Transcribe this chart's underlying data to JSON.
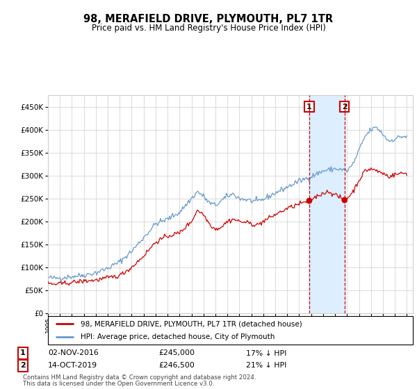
{
  "title": "98, MERAFIELD DRIVE, PLYMOUTH, PL7 1TR",
  "subtitle": "Price paid vs. HM Land Registry's House Price Index (HPI)",
  "xlim_start": 1995.0,
  "xlim_end": 2025.5,
  "ylim": [
    0,
    475000
  ],
  "yticks": [
    0,
    50000,
    100000,
    150000,
    200000,
    250000,
    300000,
    350000,
    400000,
    450000
  ],
  "transaction1_date": 2016.84,
  "transaction1_price": 245000,
  "transaction1_label": "02-NOV-2016",
  "transaction1_pct": "17% ↓ HPI",
  "transaction2_date": 2019.79,
  "transaction2_price": 246500,
  "transaction2_label": "14-OCT-2019",
  "transaction2_pct": "21% ↓ HPI",
  "legend_line1": "98, MERAFIELD DRIVE, PLYMOUTH, PL7 1TR (detached house)",
  "legend_line2": "HPI: Average price, detached house, City of Plymouth",
  "footnote1": "Contains HM Land Registry data © Crown copyright and database right 2024.",
  "footnote2": "This data is licensed under the Open Government Licence v3.0.",
  "hpi_color": "#6699cc",
  "price_color": "#cc0000",
  "marker_color": "#cc0000",
  "shade_color": "#ddeeff",
  "vline_color": "#cc0000",
  "grid_color": "#cccccc",
  "bg_color": "#ffffff"
}
